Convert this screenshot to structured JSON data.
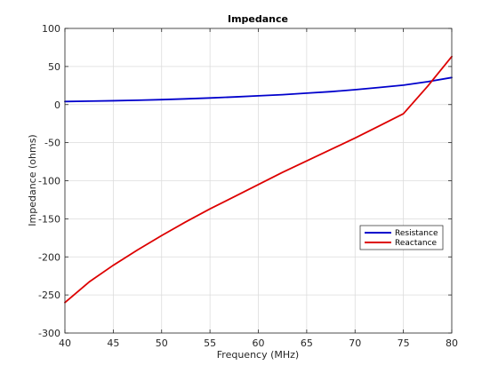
{
  "chart_data": {
    "type": "line",
    "title": "Impedance",
    "xlabel": "Frequency (MHz)",
    "ylabel": "Impedance (ohms)",
    "xlim": [
      40,
      80
    ],
    "ylim": [
      -300,
      100
    ],
    "xticks": [
      40,
      45,
      50,
      55,
      60,
      65,
      70,
      75,
      80
    ],
    "yticks": [
      -300,
      -250,
      -200,
      -150,
      -100,
      -50,
      0,
      50,
      100
    ],
    "grid": true,
    "legend_position": "lower-right",
    "x": [
      40,
      42.5,
      45,
      47.5,
      50,
      52.5,
      55,
      57.5,
      60,
      62.5,
      65,
      67.5,
      70,
      72.5,
      75,
      77.5,
      80
    ],
    "series": [
      {
        "name": "Resistance",
        "color": "#0000cc",
        "values": [
          4,
          4.5,
          5,
          5.7,
          6.5,
          7.5,
          8.7,
          10,
          11.5,
          13,
          15,
          17,
          19.5,
          22.5,
          25.5,
          30,
          35.5
        ]
      },
      {
        "name": "Reactance",
        "color": "#dd0000",
        "values": [
          -260,
          -233,
          -211,
          -191,
          -172,
          -154,
          -137,
          -121,
          -105,
          -89,
          -74,
          -59,
          -44,
          -28,
          -12,
          24,
          63
        ]
      }
    ]
  }
}
